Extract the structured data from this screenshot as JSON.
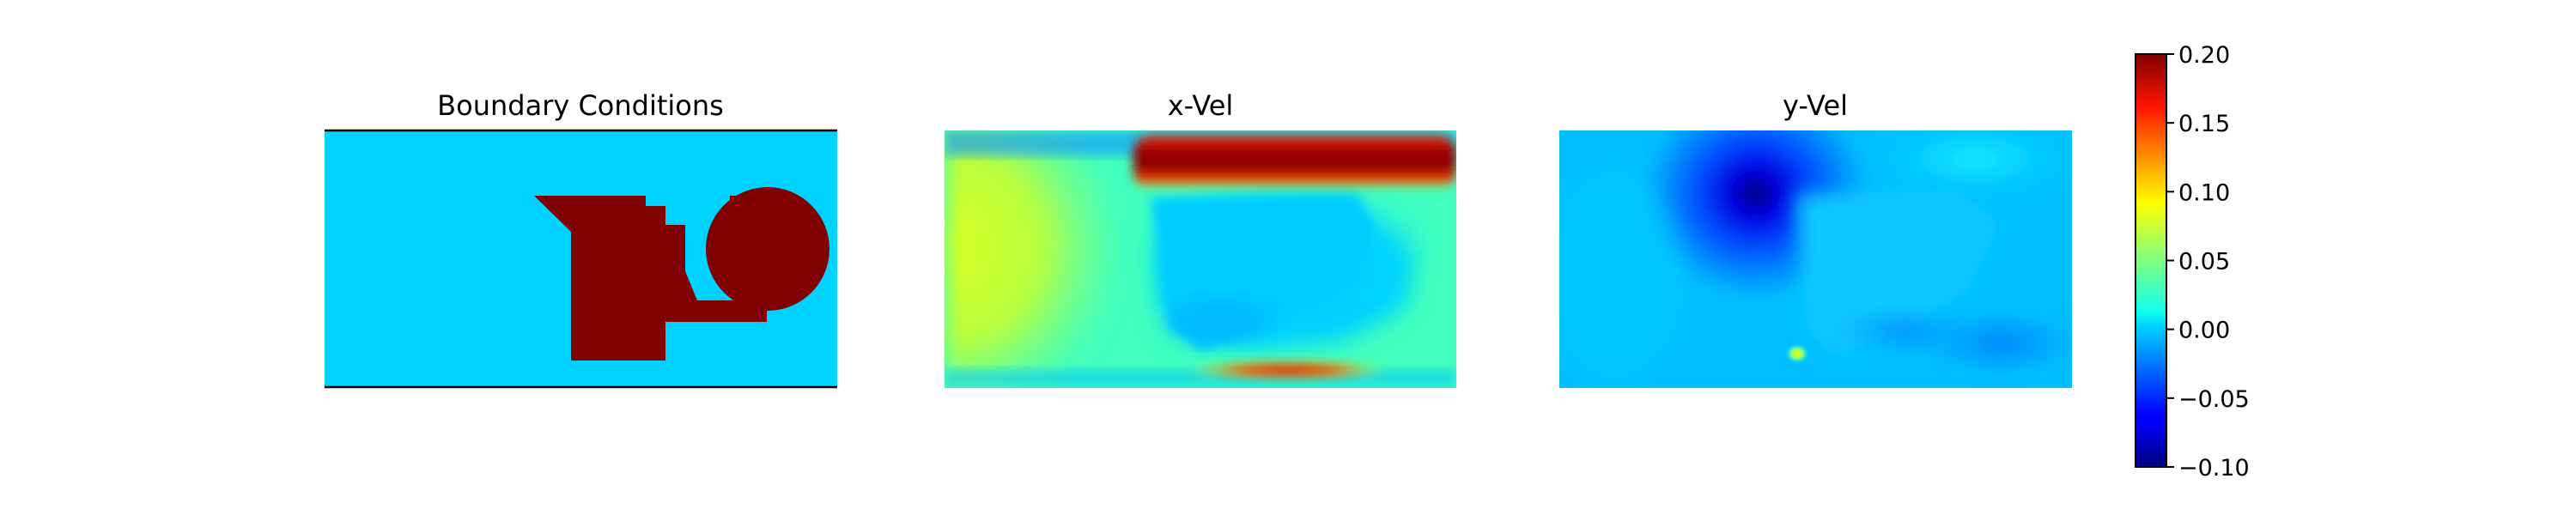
{
  "chart_data": {
    "type": "heatmap",
    "panels": [
      {
        "name": "boundary",
        "title": "Boundary Conditions"
      },
      {
        "name": "x-vel",
        "title": "x-Vel"
      },
      {
        "name": "y-vel",
        "title": "y-Vel"
      }
    ],
    "colormap": "jet",
    "colorbar": {
      "vmin": -0.1,
      "vmax": 0.2,
      "ticks": [
        -0.1,
        -0.05,
        0.0,
        0.05,
        0.1,
        0.15,
        0.2
      ],
      "tick_labels": [
        "−0.10",
        "−0.05",
        "0.00",
        "0.05",
        "0.10",
        "0.15",
        "0.20"
      ]
    },
    "grid": false
  }
}
